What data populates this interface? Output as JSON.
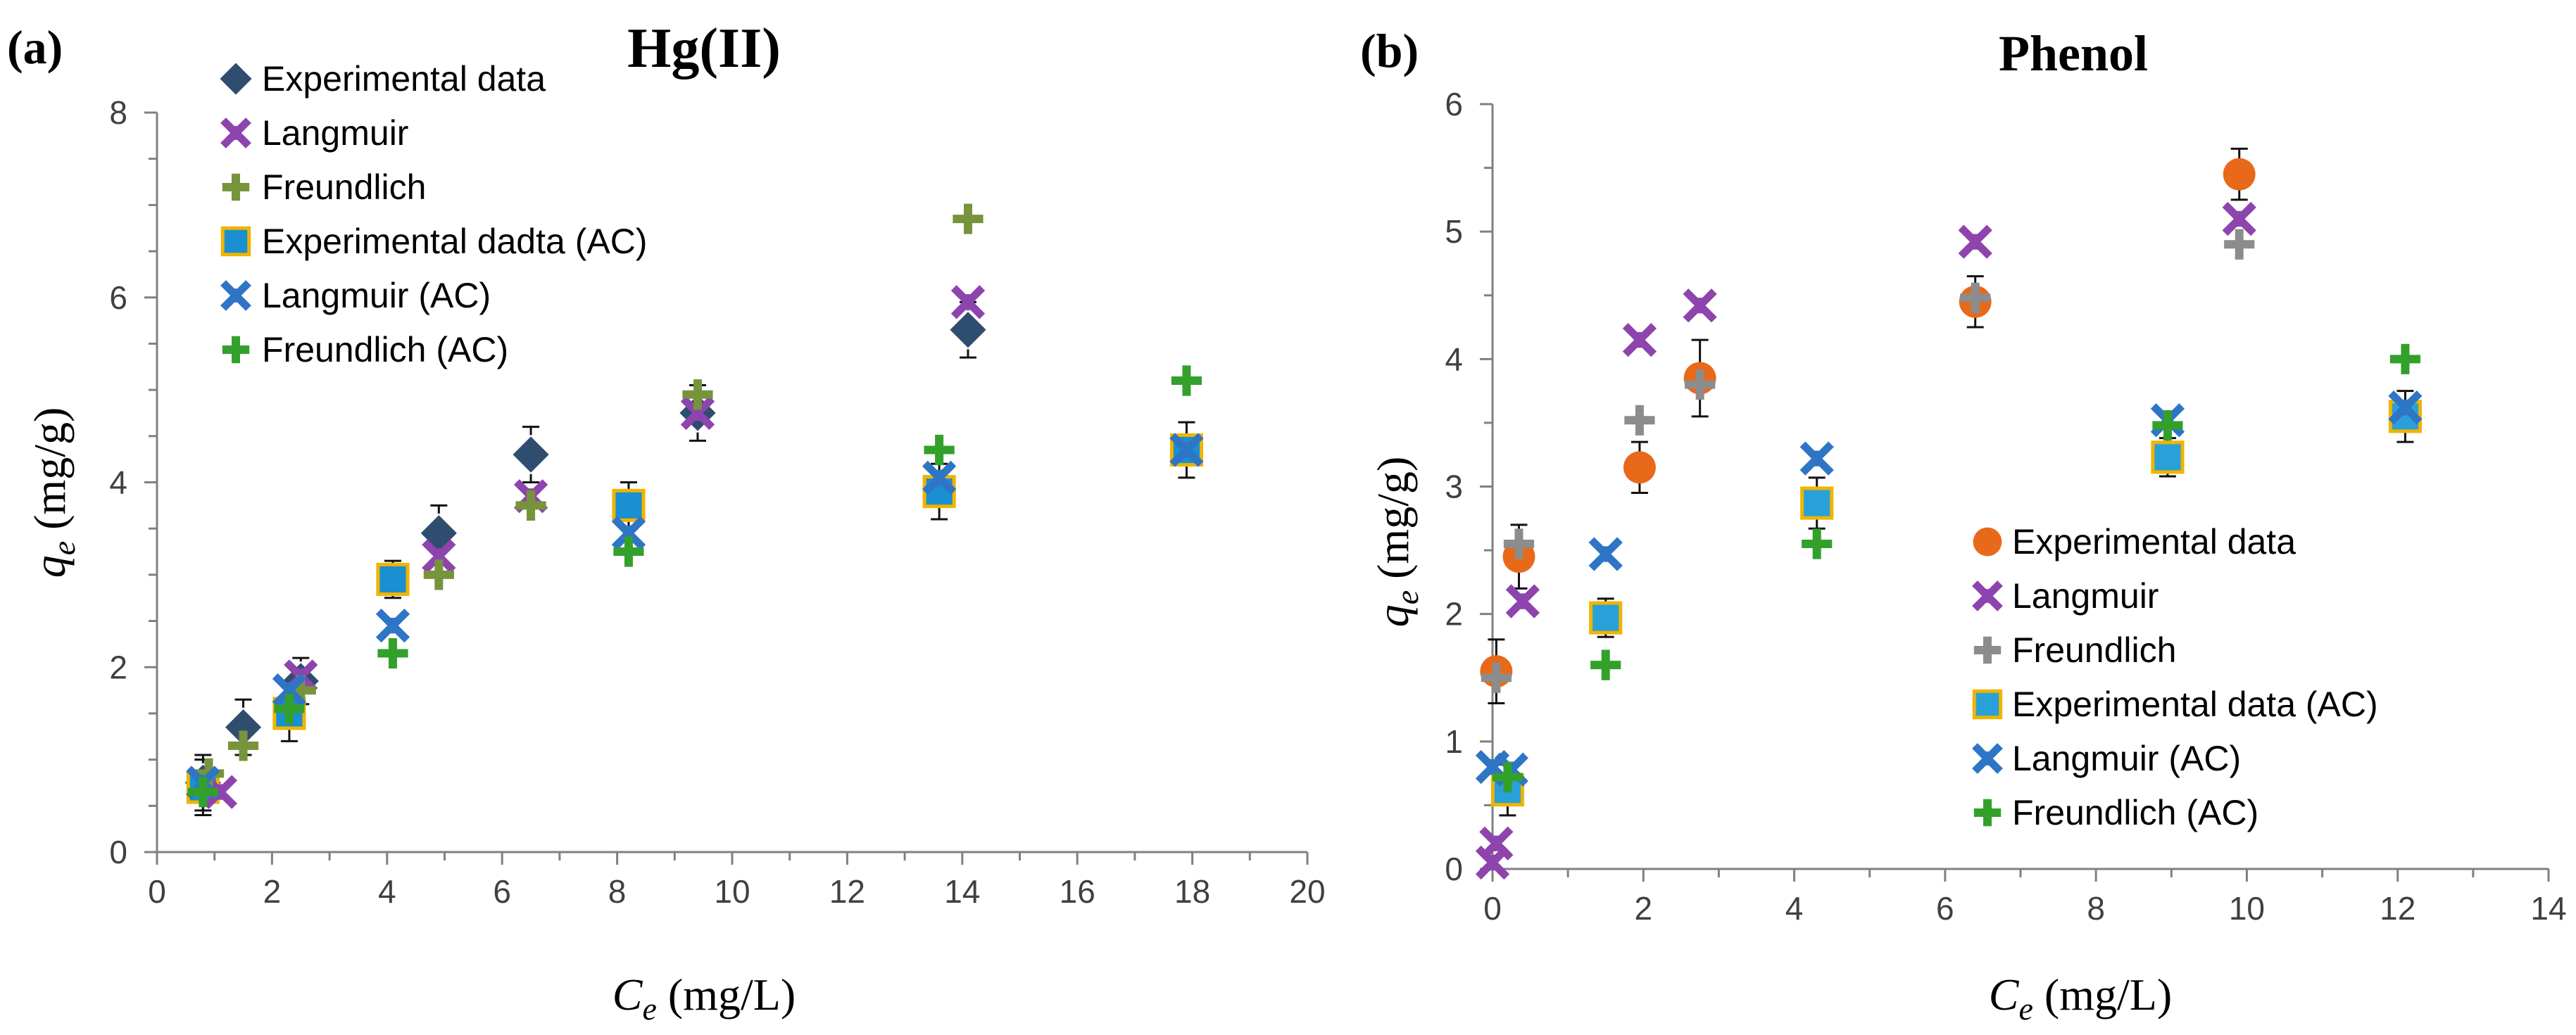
{
  "figure": {
    "panel_count": 2
  },
  "chart_data": [
    {
      "panel_label": "(a)",
      "type": "scatter",
      "title": "Hg(II)",
      "xlabel": {
        "symbol": "C",
        "subscript": "e",
        "unit": " (mg/L)"
      },
      "ylabel": {
        "symbol": "q",
        "subscript": "e",
        "unit": " (mg/g)"
      },
      "xlim": [
        0,
        20
      ],
      "ylim": [
        0,
        8
      ],
      "xticks": [
        0,
        2,
        4,
        6,
        8,
        10,
        12,
        14,
        16,
        18,
        20
      ],
      "yticks": [
        0,
        2,
        4,
        6,
        8
      ],
      "x_minor_step": 1,
      "y_minor_step": 0.5,
      "legend_position": "top-left",
      "series": [
        {
          "name": "Experimental data",
          "marker": "diamond",
          "color": "#2f4d6f",
          "x": [
            0.8,
            1.5,
            2.5,
            4.9,
            6.5,
            9.4,
            14.1
          ],
          "y": [
            0.75,
            1.35,
            1.85,
            3.45,
            4.3,
            4.75,
            5.65
          ],
          "err": [
            0.3,
            0.3,
            0.25,
            0.3,
            0.3,
            0.3,
            0.3
          ]
        },
        {
          "name": "Langmuir",
          "marker": "x",
          "color": "#8e44ad",
          "x": [
            1.1,
            2.5,
            4.9,
            6.5,
            9.4,
            14.1
          ],
          "y": [
            0.65,
            1.9,
            3.2,
            3.85,
            4.75,
            5.95
          ]
        },
        {
          "name": "Freundlich",
          "marker": "plus",
          "color": "#77933c",
          "x": [
            0.9,
            1.5,
            2.5,
            4.9,
            6.5,
            9.4,
            14.1
          ],
          "y": [
            0.85,
            1.15,
            1.75,
            3.0,
            3.75,
            4.95,
            6.85
          ]
        },
        {
          "name": "Experimental dadta (AC)",
          "marker": "square",
          "color": "#1a8fd1",
          "edge": "#f0b400",
          "x": [
            0.8,
            2.3,
            4.1,
            8.2,
            13.6,
            17.9
          ],
          "y": [
            0.7,
            1.5,
            2.95,
            3.75,
            3.9,
            4.35
          ],
          "err": [
            0.3,
            0.3,
            0.2,
            0.25,
            0.3,
            0.3
          ]
        },
        {
          "name": "Langmuir (AC)",
          "marker": "x",
          "color": "#2e75c6",
          "x": [
            0.8,
            2.3,
            4.1,
            8.2,
            13.6,
            17.9
          ],
          "y": [
            0.75,
            1.75,
            2.45,
            3.45,
            4.05,
            4.35
          ]
        },
        {
          "name": "Freundlich (AC)",
          "marker": "plus",
          "color": "#33a02c",
          "x": [
            0.8,
            2.3,
            4.1,
            8.2,
            13.6,
            17.9
          ],
          "y": [
            0.65,
            1.55,
            2.15,
            3.25,
            4.35,
            5.1
          ]
        }
      ]
    },
    {
      "panel_label": "(b)",
      "type": "scatter",
      "title": "Phenol",
      "xlabel": {
        "symbol": "C",
        "subscript": "e",
        "unit": " (mg/L)"
      },
      "ylabel": {
        "symbol": "q",
        "subscript": "e",
        "unit": " (mg/g)"
      },
      "xlim": [
        0,
        14
      ],
      "ylim": [
        0,
        6
      ],
      "xticks": [
        0,
        2,
        4,
        6,
        8,
        10,
        12,
        14
      ],
      "yticks": [
        0,
        1,
        2,
        3,
        4,
        5,
        6
      ],
      "x_minor_step": 1,
      "y_minor_step": 0.5,
      "legend_position": "bottom-right",
      "series": [
        {
          "name": "Experimental data",
          "marker": "circle",
          "color": "#e8691a",
          "x": [
            0.05,
            0.35,
            1.95,
            2.75,
            6.4,
            9.9
          ],
          "y": [
            1.55,
            2.45,
            3.15,
            3.85,
            4.45,
            5.45
          ],
          "err": [
            0.25,
            0.25,
            0.2,
            0.3,
            0.2,
            0.2
          ]
        },
        {
          "name": "Langmuir",
          "marker": "x",
          "color": "#8e44ad",
          "x": [
            0.0,
            0.05,
            0.4,
            1.95,
            2.75,
            6.4,
            9.9
          ],
          "y": [
            0.05,
            0.2,
            2.1,
            4.15,
            4.42,
            4.92,
            5.1
          ]
        },
        {
          "name": "Freundlich",
          "marker": "plus",
          "color": "#8c8c8c",
          "x": [
            0.05,
            0.35,
            1.95,
            2.75,
            6.4,
            9.9
          ],
          "y": [
            1.5,
            2.55,
            3.52,
            3.8,
            4.48,
            4.9
          ]
        },
        {
          "name": "Experimental data (AC)",
          "marker": "square",
          "color": "#2aa0d8",
          "edge": "#f0b400",
          "x": [
            0.2,
            1.5,
            4.3,
            8.95,
            12.1
          ],
          "y": [
            0.62,
            1.97,
            2.87,
            3.23,
            3.55
          ],
          "err": [
            0.2,
            0.15,
            0.2,
            0.15,
            0.2
          ]
        },
        {
          "name": "Langmuir (AC)",
          "marker": "x",
          "color": "#2e75c6",
          "x": [
            0.0,
            0.25,
            1.5,
            4.3,
            8.95,
            12.1
          ],
          "y": [
            0.8,
            0.78,
            2.47,
            3.22,
            3.52,
            3.62
          ]
        },
        {
          "name": "Freundlich (AC)",
          "marker": "plus",
          "color": "#33a02c",
          "x": [
            0.2,
            1.5,
            4.3,
            8.95,
            12.1
          ],
          "y": [
            0.72,
            1.6,
            2.55,
            3.48,
            4.0
          ]
        }
      ]
    }
  ]
}
